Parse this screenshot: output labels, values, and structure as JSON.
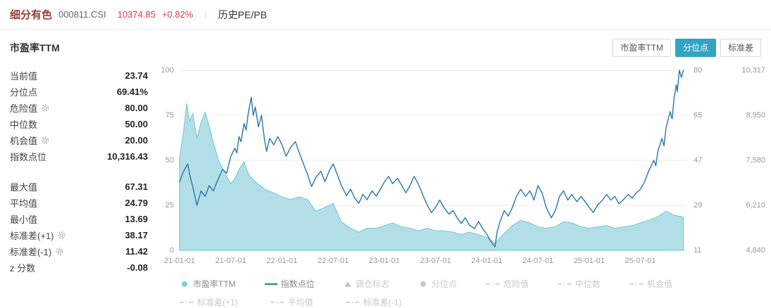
{
  "colors": {
    "up_red": "#e23c3c",
    "index_name_color": "#9c3b33",
    "accent_teal": "#35a3c4",
    "area_fill": "#aadce4",
    "area_stroke": "#72c7d3",
    "line_blue": "#2877aa",
    "muted_text": "#999999",
    "disabled_legend": "#c9c9c9"
  },
  "header": {
    "index_name": "细分有色",
    "index_code": "000811.CSI",
    "price": "10374.85",
    "change": "+0.82%",
    "divider": "|",
    "nav_label": "历史PE/PB"
  },
  "section": {
    "title": "市盈率TTM"
  },
  "toolbar": {
    "buttons": [
      {
        "key": "pe-ttm",
        "label": "市盈率TTM",
        "active": false
      },
      {
        "key": "percentile",
        "label": "分位点",
        "active": true
      },
      {
        "key": "std",
        "label": "标准差",
        "active": false
      }
    ]
  },
  "stats": {
    "groups": [
      [
        {
          "key": "current-value",
          "label": "当前值",
          "value": "23.74",
          "gear": false
        },
        {
          "key": "percentile",
          "label": "分位点",
          "value": "69.41%",
          "gear": false
        },
        {
          "key": "danger-value",
          "label": "危险值",
          "value": "80.00",
          "gear": true
        },
        {
          "key": "median",
          "label": "中位数",
          "value": "50.00",
          "gear": false
        },
        {
          "key": "opportunity-value",
          "label": "机会值",
          "value": "20.00",
          "gear": true
        },
        {
          "key": "index-points",
          "label": "指数点位",
          "value": "10,316.43",
          "gear": false
        }
      ],
      [
        {
          "key": "max-value",
          "label": "最大值",
          "value": "67.31",
          "gear": false
        },
        {
          "key": "mean-value",
          "label": "平均值",
          "value": "24.79",
          "gear": false
        },
        {
          "key": "min-value",
          "label": "最小值",
          "value": "13.69",
          "gear": false
        },
        {
          "key": "std-plus-1",
          "label": "标准差(+1)",
          "value": "38.17",
          "gear": true
        },
        {
          "key": "std-minus-1",
          "label": "标准差(-1)",
          "value": "11.42",
          "gear": true
        },
        {
          "key": "z-score",
          "label": "z 分数",
          "value": "-0.08",
          "gear": false
        }
      ]
    ]
  },
  "legend": {
    "rows": [
      [
        {
          "key": "pe-ttm",
          "label": "市盈率TTM",
          "marker": "dot",
          "color": "#7ecfd9",
          "text_color": "#8a8a8a",
          "active": true
        },
        {
          "key": "index-points",
          "label": "指数点位",
          "marker": "line",
          "color": "#2877aa",
          "text_color": "#8a8a8a",
          "active": true
        },
        {
          "key": "rebalance-flag",
          "label": "调仓标志",
          "marker": "triangle",
          "color": "#c9c9c9",
          "text_color": "#c9c9c9",
          "active": false
        },
        {
          "key": "percentile",
          "label": "分位点",
          "marker": "dot",
          "color": "#c9c9c9",
          "text_color": "#c9c9c9",
          "active": false
        },
        {
          "key": "danger-value",
          "label": "危险值",
          "marker": "dashdot",
          "color": "#c9c9c9",
          "text_color": "#c9c9c9",
          "active": false
        },
        {
          "key": "median",
          "label": "中位数",
          "marker": "dashdot",
          "color": "#c9c9c9",
          "text_color": "#c9c9c9",
          "active": false
        },
        {
          "key": "opportunity-value",
          "label": "机会值",
          "marker": "dashdot",
          "color": "#c9c9c9",
          "text_color": "#c9c9c9",
          "active": false
        }
      ],
      [
        {
          "key": "std-plus-1",
          "label": "标准差(+1)",
          "marker": "dashdot",
          "color": "#c9c9c9",
          "text_color": "#c9c9c9",
          "active": false
        },
        {
          "key": "mean-value",
          "label": "平均值",
          "marker": "dashdot",
          "color": "#c9c9c9",
          "text_color": "#c9c9c9",
          "active": false
        },
        {
          "key": "std-minus-1",
          "label": "标准差(-1)",
          "marker": "dashdot",
          "color": "#c9c9c9",
          "text_color": "#c9c9c9",
          "active": false
        }
      ]
    ]
  },
  "chart_data": {
    "type": "area+line",
    "title": "市盈率TTM",
    "legend_position": "bottom",
    "x_range": [
      2021.0,
      2025.95
    ],
    "x_ticks": [
      {
        "t": 2021.0,
        "label": "21-01-01"
      },
      {
        "t": 2021.5,
        "label": "21-07-01"
      },
      {
        "t": 2022.0,
        "label": "22-01-01"
      },
      {
        "t": 2022.5,
        "label": "22-07-01"
      },
      {
        "t": 2023.0,
        "label": "23-01-01"
      },
      {
        "t": 2023.5,
        "label": "23-07-01"
      },
      {
        "t": 2024.0,
        "label": "24-01-01"
      },
      {
        "t": 2024.5,
        "label": "24-07-01"
      },
      {
        "t": 2025.0,
        "label": "25-01-01"
      },
      {
        "t": 2025.5,
        "label": "25-07-01"
      }
    ],
    "left_axis_ticks": [
      {
        "p": 0,
        "label": "0"
      },
      {
        "p": 25,
        "label": "25"
      },
      {
        "p": 50,
        "label": "50"
      },
      {
        "p": 75,
        "label": "75"
      },
      {
        "p": 100,
        "label": "100"
      }
    ],
    "pe_axis": {
      "min": 11,
      "max": 80,
      "ticks": [
        {
          "p": 100,
          "label": "80"
        },
        {
          "p": 75,
          "label": "65"
        },
        {
          "p": 50,
          "label": "47"
        },
        {
          "p": 25,
          "label": "29"
        },
        {
          "p": 0,
          "label": "11"
        }
      ]
    },
    "index_axis": {
      "min": 4840,
      "max": 10317,
      "ticks": [
        {
          "p": 100,
          "label": "10,317"
        },
        {
          "p": 75,
          "label": "8,950"
        },
        {
          "p": 50,
          "label": "7,580"
        },
        {
          "p": 25,
          "label": "6,210"
        },
        {
          "p": 0,
          "label": "4,840"
        }
      ]
    },
    "grid_percents": [
      0,
      25,
      50,
      75,
      100
    ],
    "series": [
      {
        "name": "市盈率TTM",
        "kind": "area",
        "axis": "pe",
        "points": [
          [
            2021.0,
            46.5
          ],
          [
            2021.04,
            57.0
          ],
          [
            2021.07,
            67.3
          ],
          [
            2021.1,
            60.5
          ],
          [
            2021.13,
            63.5
          ],
          [
            2021.17,
            54.0
          ],
          [
            2021.21,
            60.0
          ],
          [
            2021.25,
            64.0
          ],
          [
            2021.29,
            58.5
          ],
          [
            2021.33,
            52.5
          ],
          [
            2021.38,
            45.5
          ],
          [
            2021.42,
            42.5
          ],
          [
            2021.46,
            39.5
          ],
          [
            2021.5,
            36.5
          ],
          [
            2021.54,
            38.5
          ],
          [
            2021.58,
            42.0
          ],
          [
            2021.63,
            45.0
          ],
          [
            2021.67,
            40.5
          ],
          [
            2021.71,
            38.5
          ],
          [
            2021.75,
            37.0
          ],
          [
            2021.83,
            34.5
          ],
          [
            2021.92,
            33.0
          ],
          [
            2022.0,
            31.5
          ],
          [
            2022.08,
            30.5
          ],
          [
            2022.17,
            31.5
          ],
          [
            2022.25,
            30.5
          ],
          [
            2022.33,
            26.0
          ],
          [
            2022.42,
            27.5
          ],
          [
            2022.5,
            29.0
          ],
          [
            2022.58,
            22.0
          ],
          [
            2022.67,
            19.5
          ],
          [
            2022.75,
            18.0
          ],
          [
            2022.83,
            19.5
          ],
          [
            2022.92,
            19.5
          ],
          [
            2023.0,
            20.5
          ],
          [
            2023.08,
            21.5
          ],
          [
            2023.17,
            20.0
          ],
          [
            2023.25,
            19.5
          ],
          [
            2023.33,
            18.5
          ],
          [
            2023.42,
            19.5
          ],
          [
            2023.5,
            18.5
          ],
          [
            2023.58,
            18.5
          ],
          [
            2023.67,
            18.0
          ],
          [
            2023.75,
            17.0
          ],
          [
            2023.83,
            18.0
          ],
          [
            2023.92,
            17.0
          ],
          [
            2024.0,
            16.0
          ],
          [
            2024.08,
            13.7
          ],
          [
            2024.17,
            17.5
          ],
          [
            2024.25,
            20.5
          ],
          [
            2024.33,
            22.5
          ],
          [
            2024.42,
            21.5
          ],
          [
            2024.5,
            20.0
          ],
          [
            2024.58,
            19.5
          ],
          [
            2024.67,
            20.0
          ],
          [
            2024.75,
            22.0
          ],
          [
            2024.83,
            21.5
          ],
          [
            2024.92,
            20.0
          ],
          [
            2025.0,
            19.5
          ],
          [
            2025.08,
            20.0
          ],
          [
            2025.17,
            20.5
          ],
          [
            2025.25,
            19.5
          ],
          [
            2025.33,
            20.0
          ],
          [
            2025.42,
            20.5
          ],
          [
            2025.5,
            21.5
          ],
          [
            2025.58,
            22.5
          ],
          [
            2025.67,
            24.0
          ],
          [
            2025.75,
            26.0
          ],
          [
            2025.83,
            24.5
          ],
          [
            2025.92,
            23.7
          ]
        ]
      },
      {
        "name": "指数点位",
        "kind": "line",
        "axis": "index",
        "points": [
          [
            2021.0,
            6920
          ],
          [
            2021.04,
            7250
          ],
          [
            2021.08,
            7470
          ],
          [
            2021.1,
            7140
          ],
          [
            2021.13,
            6760
          ],
          [
            2021.17,
            6210
          ],
          [
            2021.21,
            6650
          ],
          [
            2021.25,
            6480
          ],
          [
            2021.29,
            6810
          ],
          [
            2021.33,
            6650
          ],
          [
            2021.38,
            7030
          ],
          [
            2021.42,
            7300
          ],
          [
            2021.46,
            7190
          ],
          [
            2021.5,
            7690
          ],
          [
            2021.54,
            7950
          ],
          [
            2021.56,
            7800
          ],
          [
            2021.58,
            8300
          ],
          [
            2021.6,
            8150
          ],
          [
            2021.63,
            8700
          ],
          [
            2021.65,
            8500
          ],
          [
            2021.67,
            9000
          ],
          [
            2021.7,
            9500
          ],
          [
            2021.72,
            8950
          ],
          [
            2021.74,
            9200
          ],
          [
            2021.77,
            8600
          ],
          [
            2021.8,
            8950
          ],
          [
            2021.83,
            8200
          ],
          [
            2021.85,
            7850
          ],
          [
            2021.88,
            8250
          ],
          [
            2021.92,
            8050
          ],
          [
            2021.96,
            8300
          ],
          [
            2022.0,
            8050
          ],
          [
            2022.04,
            7700
          ],
          [
            2022.08,
            7950
          ],
          [
            2022.13,
            8150
          ],
          [
            2022.17,
            7800
          ],
          [
            2022.21,
            7470
          ],
          [
            2022.25,
            7150
          ],
          [
            2022.29,
            6780
          ],
          [
            2022.33,
            7050
          ],
          [
            2022.38,
            7250
          ],
          [
            2022.42,
            6930
          ],
          [
            2022.46,
            7250
          ],
          [
            2022.5,
            7470
          ],
          [
            2022.54,
            7150
          ],
          [
            2022.58,
            6820
          ],
          [
            2022.63,
            6500
          ],
          [
            2022.67,
            6700
          ],
          [
            2022.71,
            6430
          ],
          [
            2022.75,
            6270
          ],
          [
            2022.79,
            6540
          ],
          [
            2022.83,
            6380
          ],
          [
            2022.88,
            6650
          ],
          [
            2022.92,
            6490
          ],
          [
            2022.96,
            6700
          ],
          [
            2023.0,
            6920
          ],
          [
            2023.04,
            7090
          ],
          [
            2023.08,
            6870
          ],
          [
            2023.13,
            7030
          ],
          [
            2023.17,
            6810
          ],
          [
            2023.21,
            6590
          ],
          [
            2023.25,
            6810
          ],
          [
            2023.29,
            7090
          ],
          [
            2023.33,
            6870
          ],
          [
            2023.38,
            6490
          ],
          [
            2023.42,
            6210
          ],
          [
            2023.46,
            5990
          ],
          [
            2023.5,
            6150
          ],
          [
            2023.54,
            6370
          ],
          [
            2023.58,
            6150
          ],
          [
            2023.63,
            5940
          ],
          [
            2023.67,
            6050
          ],
          [
            2023.71,
            5830
          ],
          [
            2023.75,
            5660
          ],
          [
            2023.79,
            5830
          ],
          [
            2023.83,
            5610
          ],
          [
            2023.88,
            5500
          ],
          [
            2023.92,
            5720
          ],
          [
            2023.96,
            5500
          ],
          [
            2024.0,
            5330
          ],
          [
            2024.04,
            5110
          ],
          [
            2024.08,
            4950
          ],
          [
            2024.1,
            5390
          ],
          [
            2024.13,
            5720
          ],
          [
            2024.17,
            6050
          ],
          [
            2024.21,
            5880
          ],
          [
            2024.25,
            6150
          ],
          [
            2024.29,
            6480
          ],
          [
            2024.33,
            6700
          ],
          [
            2024.38,
            6480
          ],
          [
            2024.42,
            6650
          ],
          [
            2024.46,
            6370
          ],
          [
            2024.5,
            6810
          ],
          [
            2024.54,
            6590
          ],
          [
            2024.58,
            6150
          ],
          [
            2024.63,
            5830
          ],
          [
            2024.67,
            6050
          ],
          [
            2024.71,
            6480
          ],
          [
            2024.75,
            6650
          ],
          [
            2024.79,
            6370
          ],
          [
            2024.83,
            6540
          ],
          [
            2024.88,
            6320
          ],
          [
            2024.92,
            6480
          ],
          [
            2024.96,
            6320
          ],
          [
            2025.0,
            6150
          ],
          [
            2025.04,
            5990
          ],
          [
            2025.08,
            6210
          ],
          [
            2025.13,
            6370
          ],
          [
            2025.17,
            6540
          ],
          [
            2025.21,
            6370
          ],
          [
            2025.25,
            6480
          ],
          [
            2025.29,
            6260
          ],
          [
            2025.33,
            6370
          ],
          [
            2025.38,
            6540
          ],
          [
            2025.42,
            6430
          ],
          [
            2025.46,
            6590
          ],
          [
            2025.5,
            6700
          ],
          [
            2025.54,
            6920
          ],
          [
            2025.58,
            7250
          ],
          [
            2025.63,
            7580
          ],
          [
            2025.65,
            7410
          ],
          [
            2025.67,
            7850
          ],
          [
            2025.71,
            8240
          ],
          [
            2025.73,
            8020
          ],
          [
            2025.75,
            8560
          ],
          [
            2025.79,
            9060
          ],
          [
            2025.81,
            8840
          ],
          [
            2025.83,
            9500
          ],
          [
            2025.85,
            9880
          ],
          [
            2025.86,
            9660
          ],
          [
            2025.88,
            10317
          ],
          [
            2025.9,
            10100
          ],
          [
            2025.92,
            10316
          ]
        ]
      }
    ]
  }
}
